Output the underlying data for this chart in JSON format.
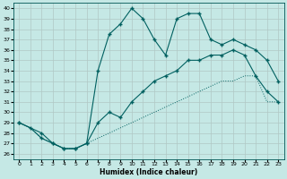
{
  "xlabel": "Humidex (Indice chaleur)",
  "background_color": "#c5e8e5",
  "grid_color": "#aaaaaa",
  "line_color": "#006060",
  "xlim": [
    -0.5,
    23.5
  ],
  "ylim": [
    25.5,
    40.5
  ],
  "xticks": [
    0,
    1,
    2,
    3,
    4,
    5,
    6,
    7,
    8,
    9,
    10,
    11,
    12,
    13,
    14,
    15,
    16,
    17,
    18,
    19,
    20,
    21,
    22,
    23
  ],
  "yticks": [
    26,
    27,
    28,
    29,
    30,
    31,
    32,
    33,
    34,
    35,
    36,
    37,
    38,
    39,
    40
  ],
  "curve_dotted_x": [
    0,
    1,
    2,
    3,
    4,
    5,
    6,
    7,
    8,
    9,
    10,
    11,
    12,
    13,
    14,
    15,
    16,
    17,
    18,
    19,
    20,
    21,
    22,
    23
  ],
  "curve_dotted_y": [
    29,
    28.5,
    27.5,
    27,
    26.5,
    26.5,
    27,
    27.5,
    28,
    28.5,
    29,
    29.5,
    30,
    30.5,
    31,
    31.5,
    32,
    32.5,
    33,
    33,
    33.5,
    33.5,
    31,
    31
  ],
  "curve_solid1_x": [
    0,
    1,
    2,
    3,
    4,
    5,
    6,
    7,
    8,
    9,
    10,
    11,
    12,
    13,
    14,
    15,
    16,
    17,
    18,
    19,
    20,
    21,
    22,
    23
  ],
  "curve_solid1_y": [
    29,
    28.5,
    27.5,
    27,
    26.5,
    26.5,
    27,
    29,
    30,
    29.5,
    31,
    32,
    33,
    33.5,
    34,
    35,
    35,
    35.5,
    35.5,
    36,
    35.5,
    33.5,
    32,
    31
  ],
  "curve_solid2_x": [
    0,
    2,
    3,
    4,
    5,
    6,
    7,
    8,
    9,
    10,
    11,
    12,
    13,
    14,
    15,
    16,
    17,
    18,
    19,
    20,
    21,
    22,
    23
  ],
  "curve_solid2_y": [
    29,
    28,
    27,
    26.5,
    26.5,
    27,
    34,
    37.5,
    38.5,
    40,
    39,
    37,
    35.5,
    39,
    39.5,
    39.5,
    37,
    36.5,
    37,
    36.5,
    36,
    35,
    33
  ]
}
